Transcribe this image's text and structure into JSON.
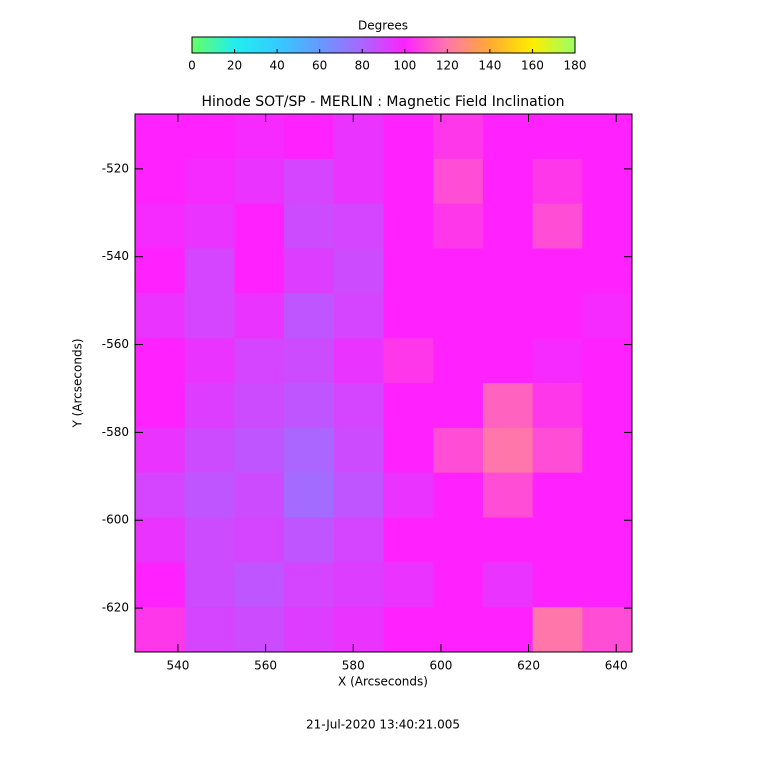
{
  "chart_data": {
    "type": "heatmap",
    "title": "Hinode SOT/SP - MERLIN : Magnetic Field Inclination",
    "xlabel": "X (Arcseconds)",
    "ylabel": "Y (Arcseconds)",
    "footer": "21-Jul-2020 13:40:21.005",
    "colorbar_label": "Degrees",
    "zlim": [
      0,
      180
    ],
    "zticks": [
      0,
      20,
      40,
      60,
      80,
      100,
      120,
      140,
      160,
      180
    ],
    "colorscale": [
      "#66ff66",
      "#22eeee",
      "#33ccff",
      "#6699ff",
      "#aa66ff",
      "#ff22ff",
      "#ff77aa",
      "#ffaa33",
      "#ffee00",
      "#99ff66"
    ],
    "xlim": [
      530.2,
      643.6
    ],
    "xticks": [
      540,
      560,
      580,
      600,
      620,
      640
    ],
    "ylim": [
      -630,
      -507.5
    ],
    "yticks": [
      -520,
      -540,
      -560,
      -580,
      -600,
      -620
    ],
    "z": [
      [
        100,
        100,
        98,
        100,
        95,
        100,
        105,
        100,
        100,
        100
      ],
      [
        100,
        98,
        95,
        90,
        95,
        100,
        110,
        100,
        105,
        100
      ],
      [
        98,
        95,
        100,
        88,
        90,
        100,
        105,
        100,
        110,
        100
      ],
      [
        100,
        90,
        100,
        92,
        88,
        100,
        100,
        100,
        100,
        100
      ],
      [
        95,
        90,
        95,
        85,
        90,
        100,
        100,
        100,
        100,
        98
      ],
      [
        100,
        95,
        90,
        88,
        95,
        105,
        100,
        100,
        98,
        100
      ],
      [
        100,
        92,
        88,
        85,
        90,
        100,
        100,
        115,
        105,
        100
      ],
      [
        95,
        88,
        85,
        80,
        88,
        100,
        110,
        120,
        110,
        100
      ],
      [
        90,
        85,
        88,
        78,
        85,
        95,
        100,
        110,
        100,
        100
      ],
      [
        95,
        88,
        90,
        85,
        90,
        100,
        100,
        100,
        100,
        100
      ],
      [
        100,
        88,
        85,
        90,
        92,
        95,
        100,
        95,
        100,
        100
      ],
      [
        105,
        90,
        88,
        92,
        95,
        100,
        100,
        100,
        120,
        110
      ]
    ]
  }
}
